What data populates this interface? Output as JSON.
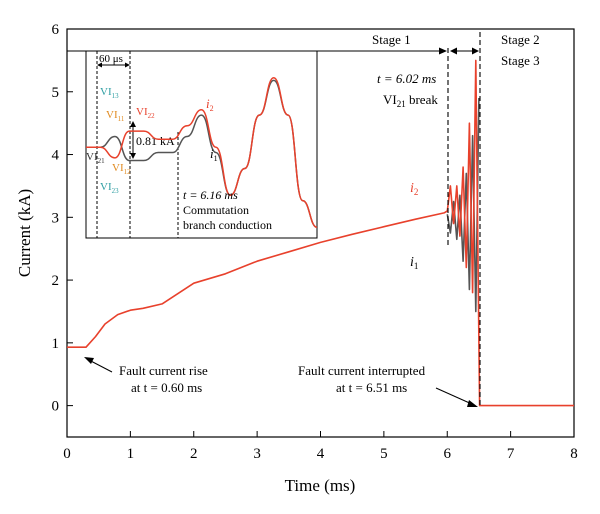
{
  "chart_data": {
    "type": "line",
    "xlabel": "Time (ms)",
    "ylabel": "Current (kA)",
    "xlim": [
      0,
      8
    ],
    "ylim": [
      -0.5,
      6
    ],
    "xticks": [
      "0",
      "1",
      "2",
      "3",
      "4",
      "5",
      "6",
      "7",
      "8"
    ],
    "yticks": [
      "0",
      "1",
      "2",
      "3",
      "4",
      "5",
      "6"
    ],
    "grid": false,
    "colors": {
      "i2": "#e8412c",
      "i1": "#555555",
      "axis": "#000000"
    },
    "series": [
      {
        "name": "i2",
        "color": "#e8412c",
        "x": [
          0,
          0.3,
          0.45,
          0.6,
          0.8,
          1.0,
          1.2,
          1.5,
          2.0,
          2.5,
          3.0,
          3.5,
          4.0,
          4.5,
          5.0,
          5.5,
          5.95,
          6.0,
          6.05,
          6.1,
          6.15,
          6.2,
          6.25,
          6.3,
          6.35,
          6.4,
          6.45,
          6.51,
          6.52,
          8.0
        ],
        "y": [
          0.93,
          0.93,
          1.1,
          1.3,
          1.45,
          1.52,
          1.55,
          1.62,
          1.95,
          2.1,
          2.3,
          2.45,
          2.6,
          2.73,
          2.85,
          2.97,
          3.07,
          3.1,
          3.5,
          2.9,
          3.5,
          2.7,
          3.8,
          2.2,
          4.5,
          1.8,
          5.5,
          0.0,
          0.0,
          0.0
        ]
      },
      {
        "name": "i1",
        "color": "#555555",
        "x": [
          6.0,
          6.05,
          6.1,
          6.15,
          6.2,
          6.25,
          6.3,
          6.35,
          6.4,
          6.45,
          6.5
        ],
        "y": [
          3.05,
          2.75,
          3.25,
          2.65,
          3.35,
          2.3,
          3.7,
          1.85,
          4.3,
          1.5,
          4.9
        ]
      }
    ],
    "inset": {
      "i2": [
        4.2,
        4.2,
        4.0,
        4.5,
        4.5,
        4.35,
        4.35,
        4.6,
        4.9,
        4.2,
        3.3,
        3.8,
        4.8,
        5.5,
        4.8,
        3.2,
        2.7
      ],
      "i1": [
        4.2,
        4.2,
        4.4,
        3.95,
        3.95,
        4.1,
        4.1,
        4.4,
        4.8,
        4.1,
        3.3,
        3.8,
        4.8,
        5.45,
        4.8,
        3.2,
        2.7
      ]
    },
    "labels": {
      "i2_main": "i",
      "i2_sub": "2",
      "i1_main": "i",
      "i1_sub": "1",
      "stage1": "Stage 1",
      "stage2": "Stage 2",
      "stage3": "Stage 3",
      "break_t": "t = 6.02 ms",
      "break_vi": "VI",
      "break_vi_sub": "21",
      "break_word": " break",
      "rise_line1": "Fault current rise",
      "rise_line2": "at t = 0.60 ms",
      "interrupt_line1": "Fault current interrupted",
      "interrupt_line2": "at t = 6.51 ms",
      "inset_60us": "60 μs",
      "inset_081": "0.81 kA",
      "inset_t616": "t = 6.16 ms",
      "inset_comm1": "Commutation",
      "inset_comm2": "branch conduction",
      "vi_label": "VI",
      "vi13": "13",
      "vi11": "11",
      "vi22": "22",
      "vi21": "21",
      "vi12": "12",
      "vi23": "23"
    }
  }
}
